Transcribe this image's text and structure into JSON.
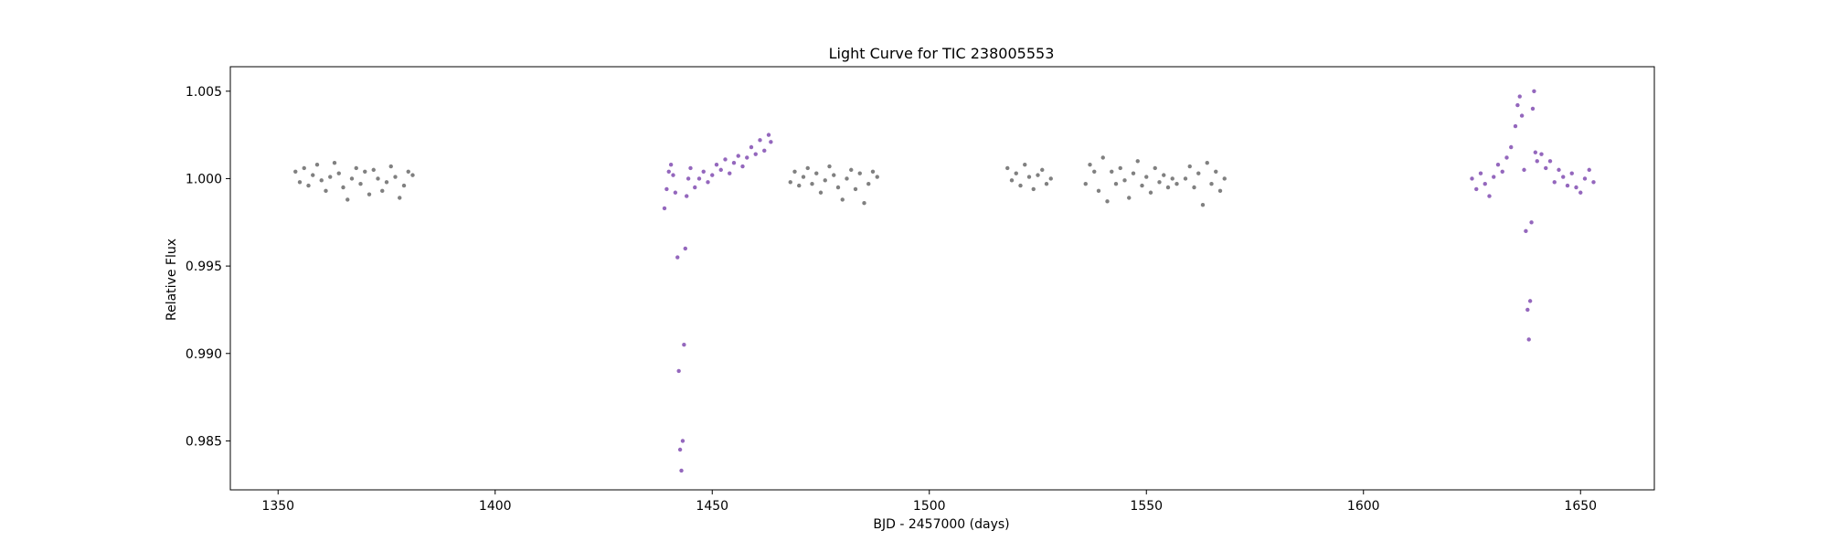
{
  "chart_data": {
    "type": "scatter",
    "title": "Light Curve for TIC 238005553",
    "xlabel": "BJD - 2457000 (days)",
    "ylabel": "Relative Flux",
    "xlim": [
      1339,
      1667
    ],
    "ylim": [
      0.9822,
      1.0064
    ],
    "x_ticks": [
      1350,
      1400,
      1450,
      1500,
      1550,
      1600,
      1650
    ],
    "y_ticks": [
      0.985,
      0.99,
      0.995,
      1.0,
      1.005
    ],
    "x_tick_labels": [
      "1350",
      "1400",
      "1450",
      "1500",
      "1550",
      "1600",
      "1650"
    ],
    "y_tick_labels": [
      "0.985",
      "0.990",
      "0.995",
      "1.000",
      "1.005"
    ],
    "grid": false,
    "colors": {
      "out_of_transit": "#808080",
      "in_transit": "#9467bd"
    },
    "series": [
      {
        "color": "#808080",
        "points": [
          [
            1354,
            1.0004
          ],
          [
            1355,
            0.9998
          ],
          [
            1356,
            1.0006
          ],
          [
            1357,
            0.9996
          ],
          [
            1358,
            1.0002
          ],
          [
            1359,
            1.0008
          ],
          [
            1360,
            0.9999
          ],
          [
            1361,
            0.9993
          ],
          [
            1362,
            1.0001
          ],
          [
            1363,
            1.0009
          ],
          [
            1364,
            1.0003
          ],
          [
            1365,
            0.9995
          ],
          [
            1366,
            0.9988
          ],
          [
            1367,
            1.0
          ],
          [
            1368,
            1.0006
          ],
          [
            1369,
            0.9997
          ],
          [
            1370,
            1.0004
          ],
          [
            1371,
            0.9991
          ],
          [
            1372,
            1.0005
          ],
          [
            1373,
            1.0
          ],
          [
            1374,
            0.9993
          ],
          [
            1375,
            0.9998
          ],
          [
            1376,
            1.0007
          ],
          [
            1377,
            1.0001
          ],
          [
            1378,
            0.9989
          ],
          [
            1379,
            0.9996
          ],
          [
            1380,
            1.0004
          ],
          [
            1381,
            1.0002
          ],
          [
            1468,
            0.9998
          ],
          [
            1469,
            1.0004
          ],
          [
            1470,
            0.9996
          ],
          [
            1471,
            1.0001
          ],
          [
            1472,
            1.0006
          ],
          [
            1473,
            0.9997
          ],
          [
            1474,
            1.0003
          ],
          [
            1475,
            0.9992
          ],
          [
            1476,
            0.9999
          ],
          [
            1477,
            1.0007
          ],
          [
            1478,
            1.0002
          ],
          [
            1479,
            0.9995
          ],
          [
            1480,
            0.9988
          ],
          [
            1481,
            1.0
          ],
          [
            1482,
            1.0005
          ],
          [
            1483,
            0.9994
          ],
          [
            1484,
            1.0003
          ],
          [
            1485,
            0.9986
          ],
          [
            1486,
            0.9997
          ],
          [
            1487,
            1.0004
          ],
          [
            1488,
            1.0001
          ],
          [
            1518,
            1.0006
          ],
          [
            1519,
            0.9999
          ],
          [
            1520,
            1.0003
          ],
          [
            1521,
            0.9996
          ],
          [
            1522,
            1.0008
          ],
          [
            1523,
            1.0001
          ],
          [
            1524,
            0.9994
          ],
          [
            1525,
            1.0002
          ],
          [
            1526,
            1.0005
          ],
          [
            1527,
            0.9997
          ],
          [
            1528,
            1.0
          ],
          [
            1536,
            0.9997
          ],
          [
            1537,
            1.0008
          ],
          [
            1538,
            1.0004
          ],
          [
            1539,
            0.9993
          ],
          [
            1540,
            1.0012
          ],
          [
            1541,
            0.9987
          ],
          [
            1542,
            1.0004
          ],
          [
            1543,
            0.9997
          ],
          [
            1544,
            1.0006
          ],
          [
            1545,
            0.9999
          ],
          [
            1546,
            0.9989
          ],
          [
            1547,
            1.0003
          ],
          [
            1548,
            1.001
          ],
          [
            1549,
            0.9996
          ],
          [
            1550,
            1.0001
          ],
          [
            1551,
            0.9992
          ],
          [
            1552,
            1.0006
          ],
          [
            1553,
            0.9998
          ],
          [
            1554,
            1.0002
          ],
          [
            1555,
            0.9995
          ],
          [
            1556,
            1.0
          ],
          [
            1557,
            0.9997
          ],
          [
            1559,
            1.0
          ],
          [
            1560,
            1.0007
          ],
          [
            1561,
            0.9995
          ],
          [
            1562,
            1.0003
          ],
          [
            1563,
            0.9985
          ],
          [
            1564,
            1.0009
          ],
          [
            1565,
            0.9997
          ],
          [
            1566,
            1.0004
          ],
          [
            1567,
            0.9993
          ],
          [
            1568,
            1.0
          ]
        ]
      },
      {
        "color": "#9467bd",
        "points": [
          [
            1439,
            0.9983
          ],
          [
            1439.5,
            0.9994
          ],
          [
            1440,
            1.0004
          ],
          [
            1440.5,
            1.0008
          ],
          [
            1441,
            1.0002
          ],
          [
            1441.5,
            0.9992
          ],
          [
            1442,
            0.9955
          ],
          [
            1442.3,
            0.989
          ],
          [
            1442.6,
            0.9845
          ],
          [
            1442.9,
            0.9833
          ],
          [
            1443.2,
            0.985
          ],
          [
            1443.5,
            0.9905
          ],
          [
            1443.8,
            0.996
          ],
          [
            1444.1,
            0.999
          ],
          [
            1444.5,
            1.0
          ],
          [
            1445,
            1.0006
          ],
          [
            1446,
            0.9995
          ],
          [
            1447,
            1.0
          ],
          [
            1448,
            1.0004
          ],
          [
            1449,
            0.9998
          ],
          [
            1450,
            1.0002
          ],
          [
            1451,
            1.0008
          ],
          [
            1452,
            1.0005
          ],
          [
            1453,
            1.0011
          ],
          [
            1454,
            1.0003
          ],
          [
            1455,
            1.0009
          ],
          [
            1456,
            1.0013
          ],
          [
            1457,
            1.0007
          ],
          [
            1458,
            1.0012
          ],
          [
            1459,
            1.0018
          ],
          [
            1460,
            1.0014
          ],
          [
            1461,
            1.0022
          ],
          [
            1462,
            1.0016
          ],
          [
            1463,
            1.0025
          ],
          [
            1463.5,
            1.0021
          ],
          [
            1625,
            1.0
          ],
          [
            1626,
            0.9994
          ],
          [
            1627,
            1.0003
          ],
          [
            1628,
            0.9997
          ],
          [
            1629,
            0.999
          ],
          [
            1630,
            1.0001
          ],
          [
            1631,
            1.0008
          ],
          [
            1632,
            1.0004
          ],
          [
            1633,
            1.0012
          ],
          [
            1634,
            1.0018
          ],
          [
            1635,
            1.003
          ],
          [
            1635.5,
            1.0042
          ],
          [
            1636,
            1.0047
          ],
          [
            1636.5,
            1.0036
          ],
          [
            1637,
            1.0005
          ],
          [
            1637.4,
            0.997
          ],
          [
            1637.8,
            0.9925
          ],
          [
            1638.1,
            0.9908
          ],
          [
            1638.4,
            0.993
          ],
          [
            1638.7,
            0.9975
          ],
          [
            1639,
            1.004
          ],
          [
            1639.3,
            1.005
          ],
          [
            1639.6,
            1.0015
          ],
          [
            1640,
            1.001
          ],
          [
            1641,
            1.0014
          ],
          [
            1642,
            1.0006
          ],
          [
            1643,
            1.001
          ],
          [
            1644,
            0.9998
          ],
          [
            1645,
            1.0005
          ],
          [
            1646,
            1.0001
          ],
          [
            1647,
            0.9996
          ],
          [
            1648,
            1.0003
          ],
          [
            1649,
            0.9995
          ],
          [
            1650,
            0.9992
          ],
          [
            1651,
            1.0
          ],
          [
            1652,
            1.0005
          ],
          [
            1653,
            0.9998
          ]
        ]
      }
    ]
  }
}
